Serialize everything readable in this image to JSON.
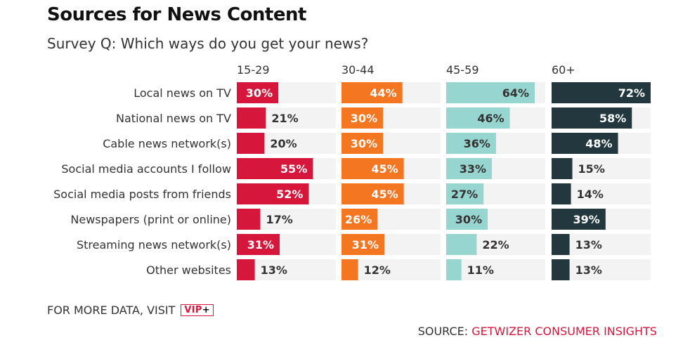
{
  "header": {
    "title": "Sources for News Content",
    "subtitle": "Survey Q: Which ways do you get your news?"
  },
  "footer": {
    "more_data": "FOR MORE DATA, VISIT",
    "vip_badge": "VIP",
    "vip_plus": "+",
    "source_prefix": "SOURCE:",
    "source_name": "GETWIZER CONSUMER INSIGHTS"
  },
  "chart_data": {
    "type": "bar",
    "orientation": "horizontal",
    "layout": "small-multiples",
    "categories": [
      "Local news on TV",
      "National news on TV",
      "Cable news network(s)",
      "Social media accounts I follow",
      "Social media posts from friends",
      "Newspapers (print or online)",
      "Streaming news network(s)",
      "Other websites"
    ],
    "xlim": [
      0,
      100
    ],
    "value_suffix": "%",
    "series": [
      {
        "name": "15-29",
        "color": "#d7163c",
        "values": [
          30,
          21,
          20,
          55,
          52,
          17,
          31,
          13
        ]
      },
      {
        "name": "30-44",
        "color": "#f47621",
        "values": [
          44,
          30,
          30,
          45,
          45,
          26,
          31,
          12
        ]
      },
      {
        "name": "45-59",
        "color": "#97d5d1",
        "values": [
          64,
          46,
          36,
          33,
          27,
          30,
          22,
          11
        ]
      },
      {
        "name": "60+",
        "color": "#23373f",
        "values": [
          72,
          58,
          48,
          15,
          14,
          39,
          13,
          13
        ]
      }
    ],
    "track_color": "#f3f3f3"
  }
}
